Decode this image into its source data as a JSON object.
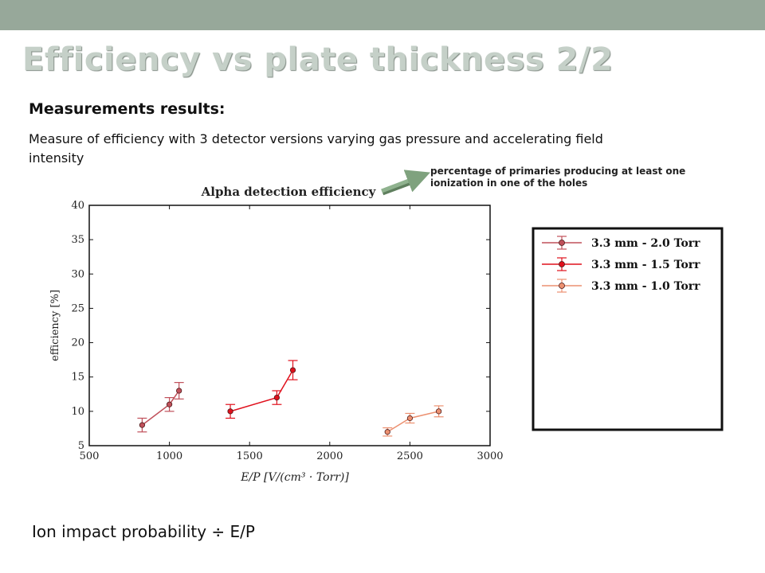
{
  "slide": {
    "title": "Efficiency vs plate thickness 2/2",
    "subtitle": "Measurements results:",
    "description": "Measure of efficiency with 3 detector versions varying gas pressure and accelerating field intensity",
    "annotation": "percentage of primaries producing at least one ionization in one of the holes",
    "footer": "Ion impact probability ÷ E/P"
  },
  "colors": {
    "topbar": "#97a89a",
    "arrow": "#7fa27e",
    "series_2_0": "#c0505a",
    "series_1_5": "#e0101c",
    "series_1_0": "#ec9070"
  },
  "chart_data": {
    "type": "scatter",
    "title": "Alpha detection efficiency",
    "xlabel": "E/P [V/(cm³ · Torr)]",
    "ylabel": "efficiency [%]",
    "xlim": [
      500,
      3000
    ],
    "ylim": [
      5,
      40
    ],
    "xticks": [
      500,
      1000,
      1500,
      2000,
      2500,
      3000
    ],
    "yticks": [
      5,
      10,
      15,
      20,
      25,
      30,
      35,
      40
    ],
    "grid": false,
    "legend_position": "outside-right",
    "series": [
      {
        "name": "3.3 mm - 2.0 Torr",
        "color": "#c0505a",
        "x": [
          830,
          1000,
          1060
        ],
        "y": [
          8,
          11,
          13
        ],
        "yerr": [
          1.0,
          1.0,
          1.2
        ]
      },
      {
        "name": "3.3 mm - 1.5 Torr",
        "color": "#e0101c",
        "x": [
          1380,
          1670,
          1770
        ],
        "y": [
          10,
          12,
          16
        ],
        "yerr": [
          1.0,
          1.0,
          1.4
        ]
      },
      {
        "name": "3.3 mm - 1.0 Torr",
        "color": "#ec9070",
        "x": [
          2360,
          2500,
          2680
        ],
        "y": [
          7,
          9,
          10
        ],
        "yerr": [
          0.6,
          0.7,
          0.8
        ]
      }
    ]
  }
}
